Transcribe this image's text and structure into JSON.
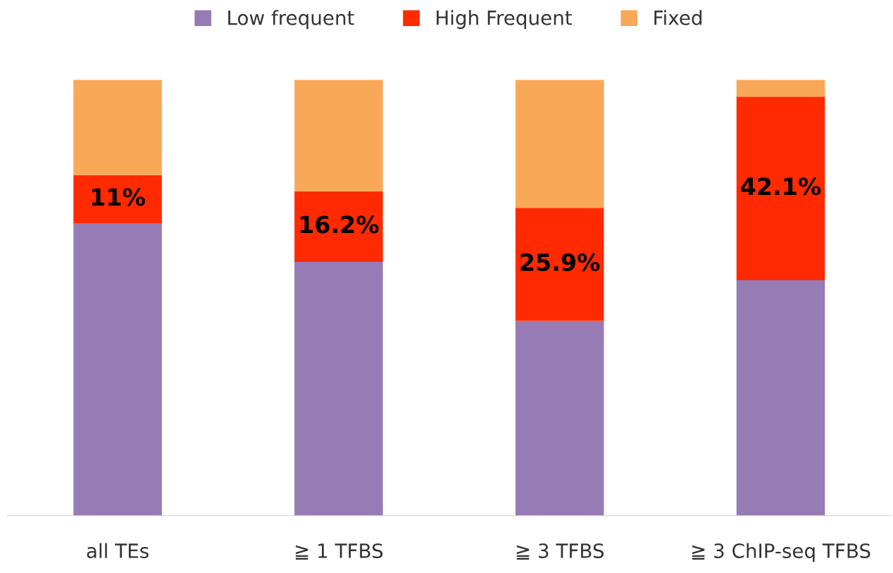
{
  "chart_data": {
    "type": "bar",
    "stacked": true,
    "categories": [
      "all TEs",
      "≧ 1 TFBS",
      "≧ 3 TFBS",
      "≧ 3 ChIP-seq TFBS"
    ],
    "series": [
      {
        "name": "Low frequent",
        "color": "#967bb4",
        "values": [
          67.1,
          58.2,
          44.7,
          54.0
        ]
      },
      {
        "name": "High Frequent",
        "color": "#ff2a00",
        "values": [
          11,
          16.2,
          25.9,
          42.1
        ],
        "value_labels": [
          "11%",
          "16.2%",
          "25.9%",
          "42.1%"
        ]
      },
      {
        "name": "Fixed",
        "color": "#f9a857",
        "values": [
          21.9,
          25.6,
          29.4,
          3.9
        ]
      }
    ],
    "ylim": [
      0,
      100
    ],
    "tick_labels": "x",
    "grid": false,
    "legend": "top"
  }
}
